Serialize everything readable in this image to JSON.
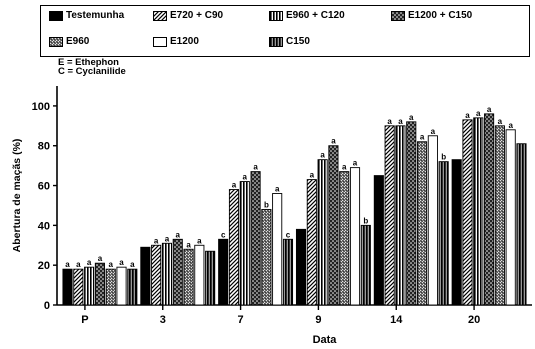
{
  "legend": {
    "items": [
      {
        "label": "Testemunha",
        "pattern": "solid"
      },
      {
        "label": "E720 + C90",
        "pattern": "diag"
      },
      {
        "label": "E960 + C120",
        "pattern": "vert"
      },
      {
        "label": "E1200 + C150",
        "pattern": "dots-dark"
      },
      {
        "label": "E960",
        "pattern": "hatch-dense"
      },
      {
        "label": "E1200",
        "pattern": "empty"
      },
      {
        "label": "C150",
        "pattern": "vert-dark"
      }
    ],
    "abbreviations": [
      "E = Ethephon",
      "C = Cyclanilide"
    ]
  },
  "chart_data": {
    "type": "bar",
    "title": "",
    "xlabel": "Data",
    "ylabel": "Abertura de maçãs (%)",
    "categories": [
      "P",
      "3",
      "7",
      "9",
      "14",
      "20"
    ],
    "ylim": [
      0,
      110
    ],
    "yticks": [
      0,
      20,
      40,
      60,
      80,
      100
    ],
    "series": [
      {
        "name": "Testemunha",
        "values": [
          18,
          29,
          33,
          38,
          65,
          73
        ],
        "labels": [
          "a",
          "",
          "c",
          "",
          "",
          ""
        ]
      },
      {
        "name": "E720 + C90",
        "values": [
          18,
          30,
          58,
          63,
          90,
          93
        ],
        "labels": [
          "a",
          "a",
          "a",
          "a",
          "a",
          "a"
        ]
      },
      {
        "name": "E960 + C120",
        "values": [
          19,
          31,
          62,
          73,
          90,
          94
        ],
        "labels": [
          "a",
          "a",
          "a",
          "a",
          "a",
          "a"
        ]
      },
      {
        "name": "E1200 + C150",
        "values": [
          21,
          33,
          67,
          80,
          92,
          96
        ],
        "labels": [
          "a",
          "a",
          "a",
          "a",
          "a",
          "a"
        ]
      },
      {
        "name": "E960",
        "values": [
          18,
          28,
          48,
          67,
          82,
          90
        ],
        "labels": [
          "a",
          "a",
          "b",
          "a",
          "a",
          "a"
        ]
      },
      {
        "name": "E1200",
        "values": [
          19,
          30,
          56,
          69,
          85,
          88
        ],
        "labels": [
          "a",
          "a",
          "a",
          "a",
          "a",
          "a"
        ]
      },
      {
        "name": "C150",
        "values": [
          18,
          27,
          33,
          40,
          72,
          81
        ],
        "labels": [
          "a",
          "",
          "c",
          "b",
          "b",
          ""
        ]
      }
    ]
  }
}
